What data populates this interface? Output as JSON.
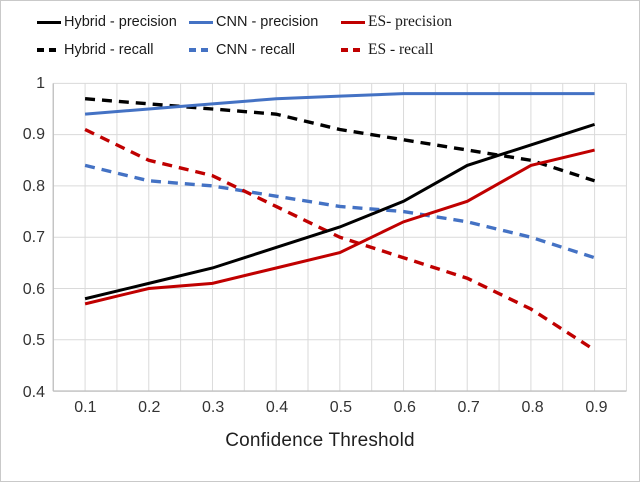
{
  "style": {
    "gridline_color": "#dadada",
    "axisline_color": "#bfbfbf",
    "text_color": "#333333",
    "hybrid_color": "#000000",
    "cnn_color": "#4472c4",
    "es_color": "#c00000"
  },
  "legend": {
    "items": [
      {
        "label": "Hybrid - precision"
      },
      {
        "label": "CNN - precision"
      },
      {
        "label": "ES- precision"
      },
      {
        "label": "Hybrid - recall"
      },
      {
        "label": "CNN - recall"
      },
      {
        "label": "ES - recall"
      }
    ]
  },
  "axes": {
    "x": {
      "title": "Confidence Threshold",
      "tick_labels": [
        "0.1",
        "0.2",
        "0.3",
        "0.4",
        "0.5",
        "0.6",
        "0.7",
        "0.8",
        "0.9"
      ],
      "tick_values": [
        0.1,
        0.2,
        0.3,
        0.4,
        0.5,
        0.6,
        0.7,
        0.8,
        0.9
      ]
    },
    "y": {
      "tick_labels": [
        "1",
        "0.9",
        "0.8",
        "0.7",
        "0.6",
        "0.5",
        "0.4"
      ],
      "tick_values": [
        1,
        0.9,
        0.8,
        0.7,
        0.6,
        0.5,
        0.4
      ]
    }
  },
  "chart_data": {
    "type": "line",
    "title": "",
    "xlabel": "Confidence Threshold",
    "ylabel": "",
    "x": [
      0.1,
      0.2,
      0.3,
      0.4,
      0.5,
      0.6,
      0.7,
      0.8,
      0.9
    ],
    "xlim": [
      0.05,
      0.95
    ],
    "ylim": [
      0.4,
      1.0
    ],
    "x_minor_step": 0.05,
    "y_grid_step": 0.1,
    "grid": true,
    "legend_position": "top",
    "series": [
      {
        "name": "Hybrid - precision",
        "color": "#000000",
        "dash": false,
        "values": [
          0.58,
          0.61,
          0.64,
          0.68,
          0.72,
          0.77,
          0.84,
          0.88,
          0.92
        ]
      },
      {
        "name": "CNN - precision",
        "color": "#4472c4",
        "dash": false,
        "values": [
          0.94,
          0.95,
          0.96,
          0.97,
          0.975,
          0.98,
          0.98,
          0.98,
          0.98
        ]
      },
      {
        "name": "ES- precision",
        "color": "#c00000",
        "dash": false,
        "values": [
          0.57,
          0.6,
          0.61,
          0.64,
          0.67,
          0.73,
          0.77,
          0.84,
          0.87
        ]
      },
      {
        "name": "Hybrid - recall",
        "color": "#000000",
        "dash": true,
        "values": [
          0.97,
          0.96,
          0.95,
          0.94,
          0.91,
          0.89,
          0.87,
          0.85,
          0.81
        ]
      },
      {
        "name": "CNN - recall",
        "color": "#4472c4",
        "dash": true,
        "values": [
          0.84,
          0.81,
          0.8,
          0.78,
          0.76,
          0.75,
          0.73,
          0.7,
          0.66
        ]
      },
      {
        "name": "ES - recall",
        "color": "#c00000",
        "dash": true,
        "values": [
          0.91,
          0.85,
          0.82,
          0.76,
          0.7,
          0.66,
          0.62,
          0.56,
          0.48
        ]
      }
    ]
  }
}
